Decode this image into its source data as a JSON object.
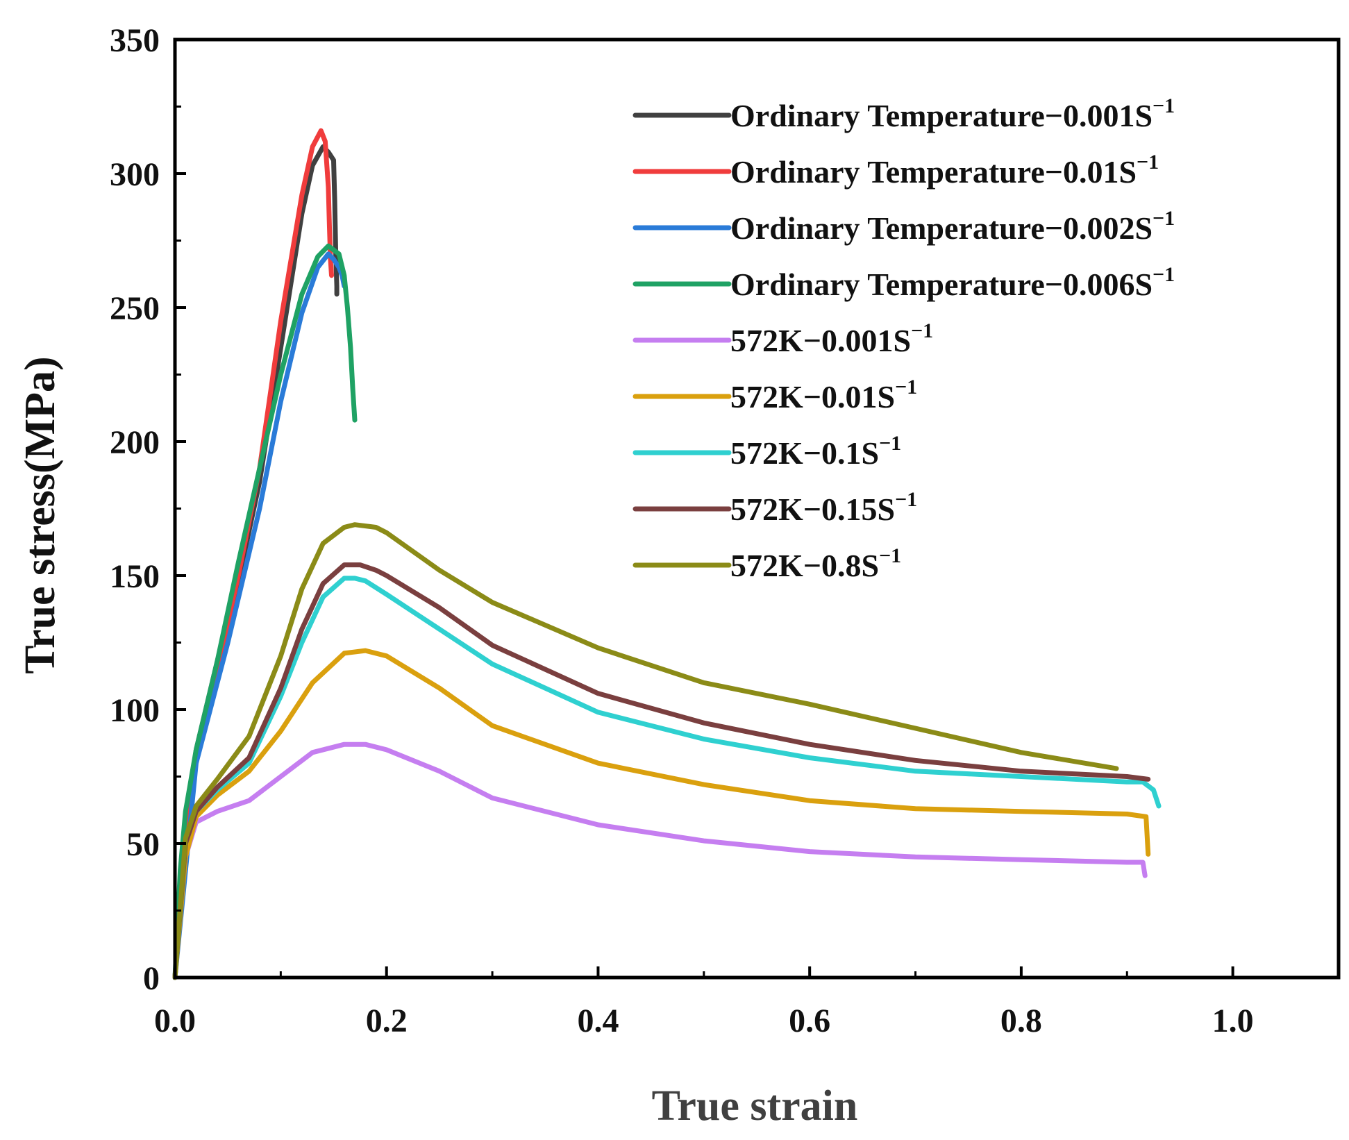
{
  "chart_data": {
    "type": "line",
    "title": "",
    "xlabel": "True strain",
    "ylabel": "True stress(MPa)",
    "xlim": [
      0,
      1.1
    ],
    "ylim": [
      0,
      350
    ],
    "xticks": [
      0.0,
      0.2,
      0.4,
      0.6,
      0.8,
      1.0
    ],
    "xtick_labels": [
      "0.0",
      "0.2",
      "0.4",
      "0.6",
      "0.8",
      "1.0"
    ],
    "yticks": [
      0,
      50,
      100,
      150,
      200,
      250,
      300,
      350
    ],
    "ytick_labels": [
      "0",
      "50",
      "100",
      "150",
      "200",
      "250",
      "300",
      "350"
    ],
    "grid": false,
    "legend_position": "top-right",
    "series": [
      {
        "name": "Ordinary Temperature−0.001S",
        "sup": "−1",
        "color": "#404040",
        "x": [
          0,
          0.01,
          0.02,
          0.04,
          0.06,
          0.08,
          0.1,
          0.12,
          0.13,
          0.14,
          0.145,
          0.15,
          0.151,
          0.152,
          0.153,
          0.153
        ],
        "y": [
          0,
          55,
          85,
          118,
          148,
          185,
          235,
          285,
          303,
          310,
          308,
          305,
          290,
          270,
          258,
          255
        ]
      },
      {
        "name": "Ordinary Temperature−0.01S",
        "sup": "−1",
        "color": "#f03c3c",
        "x": [
          0,
          0.01,
          0.02,
          0.04,
          0.06,
          0.08,
          0.1,
          0.12,
          0.13,
          0.138,
          0.142,
          0.145,
          0.146,
          0.147,
          0.148
        ],
        "y": [
          0,
          50,
          82,
          115,
          150,
          190,
          245,
          292,
          310,
          316,
          312,
          295,
          280,
          268,
          262
        ]
      },
      {
        "name": "Ordinary Temperature−0.002S",
        "sup": "−1",
        "color": "#2a7bd8",
        "x": [
          0,
          0.02,
          0.05,
          0.08,
          0.1,
          0.12,
          0.135,
          0.145,
          0.15,
          0.155,
          0.158,
          0.16
        ],
        "y": [
          0,
          80,
          125,
          175,
          215,
          248,
          265,
          270,
          268,
          265,
          262,
          258
        ]
      },
      {
        "name": "Ordinary Temperature−0.006S",
        "sup": "−1",
        "color": "#1fa264",
        "x": [
          0,
          0.005,
          0.01,
          0.02,
          0.04,
          0.06,
          0.08,
          0.1,
          0.12,
          0.135,
          0.145,
          0.155,
          0.16,
          0.163,
          0.166,
          0.168,
          0.17
        ],
        "y": [
          0,
          40,
          62,
          85,
          118,
          155,
          190,
          225,
          255,
          269,
          273,
          270,
          262,
          250,
          235,
          220,
          208
        ]
      },
      {
        "name": "572K−0.001S",
        "sup": "−1",
        "color": "#c57ef0",
        "x": [
          0,
          0.005,
          0.01,
          0.02,
          0.04,
          0.07,
          0.1,
          0.13,
          0.16,
          0.18,
          0.2,
          0.25,
          0.3,
          0.4,
          0.5,
          0.6,
          0.7,
          0.8,
          0.9,
          0.915,
          0.917
        ],
        "y": [
          0,
          25,
          45,
          58,
          62,
          66,
          75,
          84,
          87,
          87,
          85,
          77,
          67,
          57,
          51,
          47,
          45,
          44,
          43,
          43,
          38
        ]
      },
      {
        "name": "572K−0.01S",
        "sup": "−1",
        "color": "#daa00e",
        "x": [
          0,
          0.01,
          0.02,
          0.04,
          0.07,
          0.1,
          0.13,
          0.16,
          0.18,
          0.2,
          0.25,
          0.3,
          0.4,
          0.5,
          0.6,
          0.7,
          0.8,
          0.9,
          0.918,
          0.92
        ],
        "y": [
          0,
          45,
          60,
          68,
          77,
          92,
          110,
          121,
          122,
          120,
          108,
          94,
          80,
          72,
          66,
          63,
          62,
          61,
          60,
          46
        ]
      },
      {
        "name": "572K−0.1S",
        "sup": "−1",
        "color": "#2fd0d0",
        "x": [
          0,
          0.01,
          0.02,
          0.04,
          0.07,
          0.1,
          0.12,
          0.14,
          0.16,
          0.17,
          0.18,
          0.2,
          0.25,
          0.3,
          0.4,
          0.5,
          0.6,
          0.7,
          0.8,
          0.9,
          0.915,
          0.925,
          0.93
        ],
        "y": [
          0,
          50,
          62,
          70,
          80,
          105,
          125,
          142,
          149,
          149,
          148,
          143,
          130,
          117,
          99,
          89,
          82,
          77,
          75,
          73,
          73,
          70,
          64
        ]
      },
      {
        "name": "572K−0.15S",
        "sup": "−1",
        "color": "#7a3f3f",
        "x": [
          0,
          0.01,
          0.02,
          0.04,
          0.07,
          0.1,
          0.12,
          0.14,
          0.16,
          0.175,
          0.19,
          0.2,
          0.25,
          0.3,
          0.4,
          0.5,
          0.6,
          0.7,
          0.8,
          0.9,
          0.92
        ],
        "y": [
          0,
          50,
          62,
          71,
          82,
          108,
          130,
          147,
          154,
          154,
          152,
          150,
          138,
          124,
          106,
          95,
          87,
          81,
          77,
          75,
          74
        ]
      },
      {
        "name": "572K−0.8S",
        "sup": "−1",
        "color": "#8b8b17",
        "x": [
          0,
          0.01,
          0.02,
          0.04,
          0.07,
          0.1,
          0.12,
          0.14,
          0.16,
          0.17,
          0.19,
          0.2,
          0.25,
          0.3,
          0.4,
          0.5,
          0.6,
          0.7,
          0.8,
          0.89
        ],
        "y": [
          0,
          52,
          64,
          74,
          90,
          120,
          145,
          162,
          168,
          169,
          168,
          166,
          152,
          140,
          123,
          110,
          102,
          93,
          84,
          78
        ]
      }
    ]
  }
}
